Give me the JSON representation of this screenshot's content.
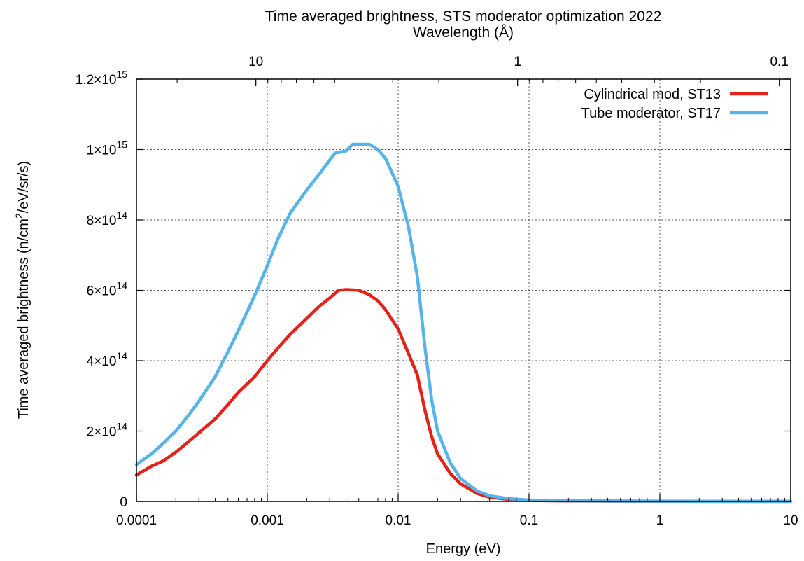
{
  "chart_data": {
    "type": "line",
    "title": "Time averaged brightness, STS moderator optimization 2022",
    "x_axis": {
      "label": "Energy (eV)",
      "scale": "log",
      "range": [
        0.0001,
        10
      ],
      "ticks": [
        0.0001,
        0.001,
        0.01,
        0.1,
        1,
        10
      ],
      "tick_labels": [
        "0.0001",
        "0.001",
        "0.01",
        "0.1",
        "1",
        "10"
      ]
    },
    "x2_axis": {
      "label": "Wavelength (Å)",
      "ticks": [
        10,
        1,
        0.1
      ],
      "tick_labels": [
        "10",
        "1",
        "0.1"
      ]
    },
    "y_axis": {
      "label_main": "Time averaged brightness (n/cm",
      "label_sup": "2",
      "label_tail": "/eV/sr/s)",
      "range": [
        0,
        1200000000000000.0
      ],
      "ticks": [
        0,
        200000000000000.0,
        400000000000000.0,
        600000000000000.0,
        800000000000000.0,
        1000000000000000.0,
        1200000000000000.0
      ],
      "tick_labels": [
        {
          "mantissa": "0",
          "exp": ""
        },
        {
          "mantissa": "2×10",
          "exp": "14"
        },
        {
          "mantissa": "4×10",
          "exp": "14"
        },
        {
          "mantissa": "6×10",
          "exp": "14"
        },
        {
          "mantissa": "8×10",
          "exp": "14"
        },
        {
          "mantissa": "1×10",
          "exp": "15"
        },
        {
          "mantissa": "1.2×10",
          "exp": "15"
        }
      ]
    },
    "grid": true,
    "legend_position": "top-right",
    "series": [
      {
        "name": "Cylindrical mod, ST13",
        "color": "#e2231a",
        "points": [
          [
            0.0001,
            75000000000000.0
          ],
          [
            0.00013,
            100000000000000.0
          ],
          [
            0.00016,
            115000000000000.0
          ],
          [
            0.0002,
            140000000000000.0
          ],
          [
            0.00025,
            170000000000000.0
          ],
          [
            0.0003,
            195000000000000.0
          ],
          [
            0.0004,
            235000000000000.0
          ],
          [
            0.0005,
            275000000000000.0
          ],
          [
            0.0006,
            310000000000000.0
          ],
          [
            0.0008,
            355000000000000.0
          ],
          [
            0.001,
            400000000000000.0
          ],
          [
            0.0012,
            435000000000000.0
          ],
          [
            0.0015,
            475000000000000.0
          ],
          [
            0.002,
            520000000000000.0
          ],
          [
            0.0025,
            555000000000000.0
          ],
          [
            0.003,
            578000000000000.0
          ],
          [
            0.0035,
            600000000000000.0
          ],
          [
            0.004,
            602000000000000.0
          ],
          [
            0.005,
            600000000000000.0
          ],
          [
            0.006,
            588000000000000.0
          ],
          [
            0.007,
            570000000000000.0
          ],
          [
            0.008,
            545000000000000.0
          ],
          [
            0.01,
            490000000000000.0
          ],
          [
            0.012,
            420000000000000.0
          ],
          [
            0.014,
            360000000000000.0
          ],
          [
            0.016,
            260000000000000.0
          ],
          [
            0.018,
            185000000000000.0
          ],
          [
            0.02,
            135000000000000.0
          ],
          [
            0.025,
            80000000000000.0
          ],
          [
            0.03,
            50000000000000.0
          ],
          [
            0.04,
            23000000000000.0
          ],
          [
            0.05,
            12000000000000.0
          ],
          [
            0.07,
            6000000000000.0
          ],
          [
            0.1,
            3000000000000.0
          ],
          [
            0.2,
            1500000000000.0
          ],
          [
            0.5,
            800000000000.0
          ],
          [
            1,
            500000000000.0
          ],
          [
            3,
            300000000000.0
          ],
          [
            10,
            200000000000.0
          ]
        ]
      },
      {
        "name": "Tube moderator, ST17",
        "color": "#56b4e9",
        "points": [
          [
            0.0001,
            105000000000000.0
          ],
          [
            0.00013,
            135000000000000.0
          ],
          [
            0.00016,
            165000000000000.0
          ],
          [
            0.0002,
            200000000000000.0
          ],
          [
            0.00025,
            245000000000000.0
          ],
          [
            0.0003,
            285000000000000.0
          ],
          [
            0.0004,
            355000000000000.0
          ],
          [
            0.0005,
            425000000000000.0
          ],
          [
            0.0006,
            485000000000000.0
          ],
          [
            0.0008,
            585000000000000.0
          ],
          [
            0.001,
            670000000000000.0
          ],
          [
            0.0012,
            745000000000000.0
          ],
          [
            0.0015,
            820000000000000.0
          ],
          [
            0.002,
            885000000000000.0
          ],
          [
            0.0025,
            930000000000000.0
          ],
          [
            0.003,
            970000000000000.0
          ],
          [
            0.0033,
            990000000000000.0
          ],
          [
            0.004,
            996000000000000.0
          ],
          [
            0.0045,
            1015000000000000.0
          ],
          [
            0.005,
            1015000000000000.0
          ],
          [
            0.006,
            1015000000000000.0
          ],
          [
            0.007,
            1000000000000000.0
          ],
          [
            0.008,
            975000000000000.0
          ],
          [
            0.01,
            895000000000000.0
          ],
          [
            0.012,
            780000000000000.0
          ],
          [
            0.014,
            640000000000000.0
          ],
          [
            0.016,
            440000000000000.0
          ],
          [
            0.018,
            290000000000000.0
          ],
          [
            0.02,
            200000000000000.0
          ],
          [
            0.025,
            110000000000000.0
          ],
          [
            0.03,
            65000000000000.0
          ],
          [
            0.04,
            30000000000000.0
          ],
          [
            0.05,
            16000000000000.0
          ],
          [
            0.07,
            8000000000000.0
          ],
          [
            0.1,
            4000000000000.0
          ],
          [
            0.2,
            2000000000000.0
          ],
          [
            0.5,
            1000000000000.0
          ],
          [
            1,
            700000000000.0
          ],
          [
            3,
            400000000000.0
          ],
          [
            10,
            300000000000.0
          ]
        ]
      }
    ]
  }
}
